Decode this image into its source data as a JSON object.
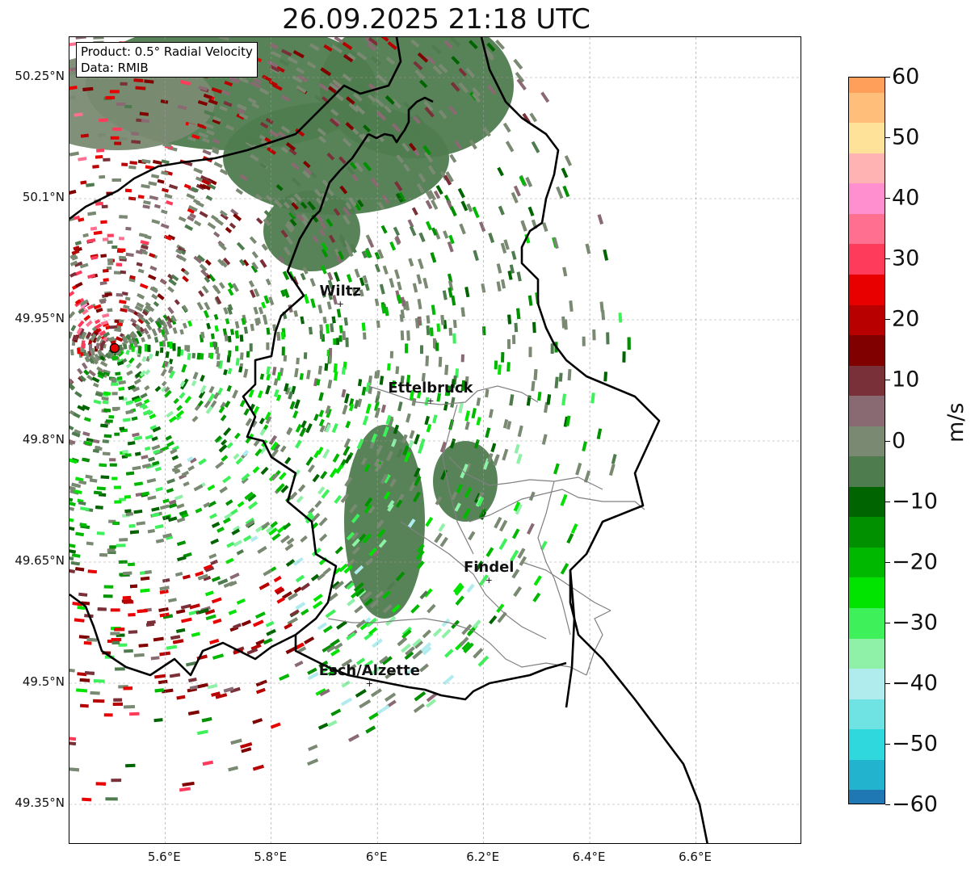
{
  "title": "26.09.2025 21:18 UTC",
  "info": {
    "product": "Product: 0.5° Radial Velocity",
    "data": "Data: RMIB"
  },
  "map": {
    "lon_range": [
      5.42,
      6.8
    ],
    "lat_range": [
      49.3,
      50.3
    ],
    "radar_site": {
      "lon": 5.505,
      "lat": 49.915
    },
    "lat_ticks": [
      {
        "value": 50.25,
        "label": "50.25°N"
      },
      {
        "value": 50.1,
        "label": "50.1°N"
      },
      {
        "value": 49.95,
        "label": "49.95°N"
      },
      {
        "value": 49.8,
        "label": "49.8°N"
      },
      {
        "value": 49.65,
        "label": "49.65°N"
      },
      {
        "value": 49.5,
        "label": "49.5°N"
      },
      {
        "value": 49.35,
        "label": "49.35°N"
      }
    ],
    "lon_ticks": [
      {
        "value": 5.6,
        "label": "5.6°E"
      },
      {
        "value": 5.8,
        "label": "5.8°E"
      },
      {
        "value": 6.0,
        "label": "6°E"
      },
      {
        "value": 6.2,
        "label": "6.2°E"
      },
      {
        "value": 6.4,
        "label": "6.4°E"
      },
      {
        "value": 6.6,
        "label": "6.6°E"
      }
    ],
    "cities": [
      {
        "name": "Wiltz",
        "lon": 5.93,
        "lat": 49.97
      },
      {
        "name": "Ettelbruck",
        "lon": 6.1,
        "lat": 49.85
      },
      {
        "name": "Findel",
        "lon": 6.21,
        "lat": 49.628
      },
      {
        "name": "Esch/Alzette",
        "lon": 5.985,
        "lat": 49.5
      }
    ]
  },
  "colorbar": {
    "label": "m/s",
    "min": -60,
    "max": 60,
    "ticks": [
      {
        "value": 60,
        "label": "60"
      },
      {
        "value": 50,
        "label": "50"
      },
      {
        "value": 40,
        "label": "40"
      },
      {
        "value": 30,
        "label": "30"
      },
      {
        "value": 20,
        "label": "20"
      },
      {
        "value": 10,
        "label": "10"
      },
      {
        "value": 0,
        "label": "0"
      },
      {
        "value": -10,
        "label": "−10"
      },
      {
        "value": -20,
        "label": "−20"
      },
      {
        "value": -30,
        "label": "−30"
      },
      {
        "value": -40,
        "label": "−40"
      },
      {
        "value": -50,
        "label": "−50"
      },
      {
        "value": -60,
        "label": "−60"
      }
    ],
    "stops": [
      {
        "value": -60,
        "color": "#1f77b4"
      },
      {
        "value": -55,
        "color": "#22b3cf"
      },
      {
        "value": -50,
        "color": "#2ed8dc"
      },
      {
        "value": -45,
        "color": "#6fe3e4"
      },
      {
        "value": -40,
        "color": "#b0ecee"
      },
      {
        "value": -35,
        "color": "#8ff0a8"
      },
      {
        "value": -30,
        "color": "#3ef05a"
      },
      {
        "value": -25,
        "color": "#00e400"
      },
      {
        "value": -20,
        "color": "#00b800"
      },
      {
        "value": -15,
        "color": "#009000"
      },
      {
        "value": -10,
        "color": "#006400"
      },
      {
        "value": -5,
        "color": "#4f7c4f"
      },
      {
        "value": 0,
        "color": "#7a8a72"
      },
      {
        "value": 5,
        "color": "#8a6a72"
      },
      {
        "value": 10,
        "color": "#7a3038"
      },
      {
        "value": 15,
        "color": "#800000"
      },
      {
        "value": 20,
        "color": "#b80000"
      },
      {
        "value": 25,
        "color": "#e80000"
      },
      {
        "value": 30,
        "color": "#ff3b5c"
      },
      {
        "value": 35,
        "color": "#ff6f90"
      },
      {
        "value": 40,
        "color": "#ff8fcf"
      },
      {
        "value": 45,
        "color": "#ffb3b3"
      },
      {
        "value": 50,
        "color": "#ffe29a"
      },
      {
        "value": 55,
        "color": "#ffbf7a"
      },
      {
        "value": 60,
        "color": "#ff9f5a"
      }
    ]
  }
}
